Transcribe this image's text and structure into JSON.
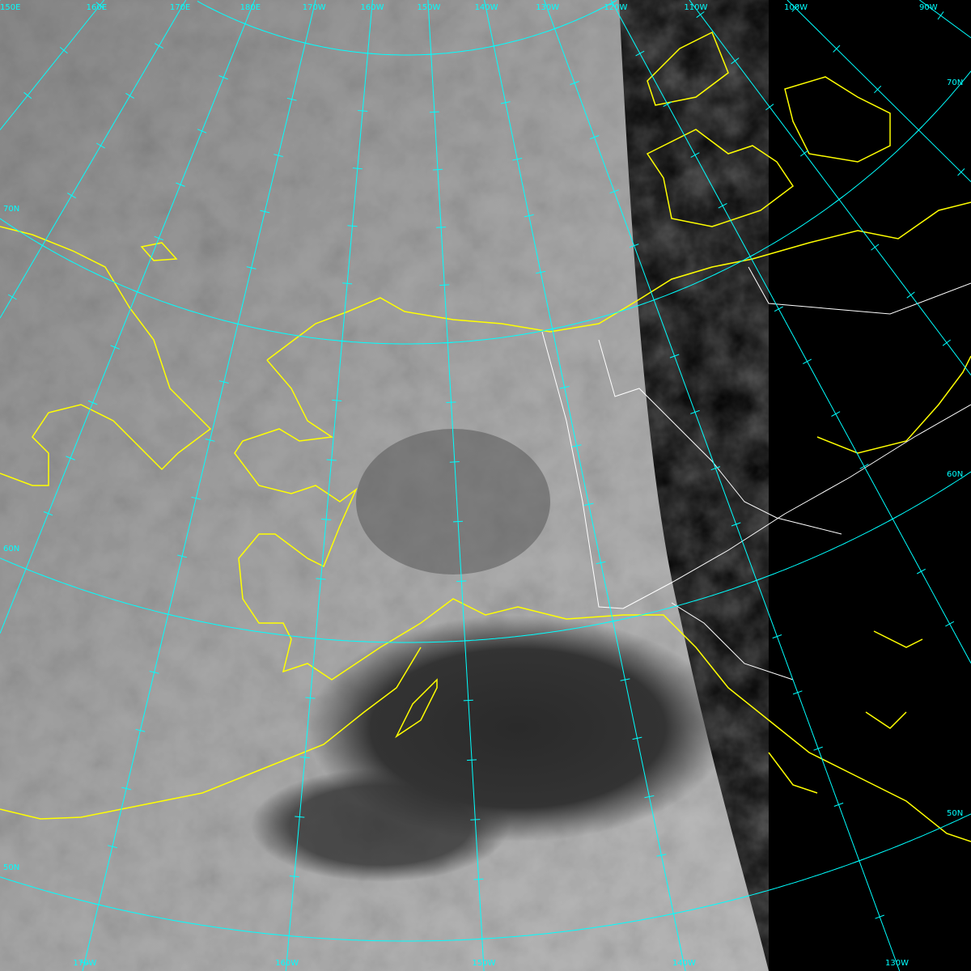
{
  "colors": {
    "graticule": "#00ffff",
    "coastline": "#ffff00",
    "border": "#ffffff",
    "space": "#000000"
  },
  "graticule": {
    "meridian_labels_top": [
      {
        "lon": 150,
        "text": "150E"
      },
      {
        "lon": 160,
        "text": "160E"
      },
      {
        "lon": 170,
        "text": "170E"
      },
      {
        "lon": 180,
        "text": "180E"
      },
      {
        "lon": -170,
        "text": "170W"
      },
      {
        "lon": -160,
        "text": "160W"
      },
      {
        "lon": -150,
        "text": "150W"
      },
      {
        "lon": -140,
        "text": "140W"
      },
      {
        "lon": -130,
        "text": "130W"
      },
      {
        "lon": -120,
        "text": "120W"
      },
      {
        "lon": -110,
        "text": "110W"
      },
      {
        "lon": -100,
        "text": "100W"
      },
      {
        "lon": -90,
        "text": "90W"
      }
    ],
    "meridian_labels_bottom": [
      {
        "lon": -170,
        "text": "170W"
      },
      {
        "lon": -160,
        "text": "160W"
      },
      {
        "lon": -150,
        "text": "150W"
      },
      {
        "lon": -140,
        "text": "140W"
      },
      {
        "lon": -130,
        "text": "130W"
      }
    ],
    "parallel_labels_left": [
      {
        "lat": 70,
        "text": "70N"
      },
      {
        "lat": 60,
        "text": "60N"
      },
      {
        "lat": 50,
        "text": "50N"
      }
    ],
    "parallel_labels_right": [
      {
        "lat": 70,
        "text": "70N"
      },
      {
        "lat": 60,
        "text": "60N"
      },
      {
        "lat": 50,
        "text": "50N"
      }
    ],
    "parallels": [
      80,
      70,
      60,
      50,
      40
    ]
  }
}
